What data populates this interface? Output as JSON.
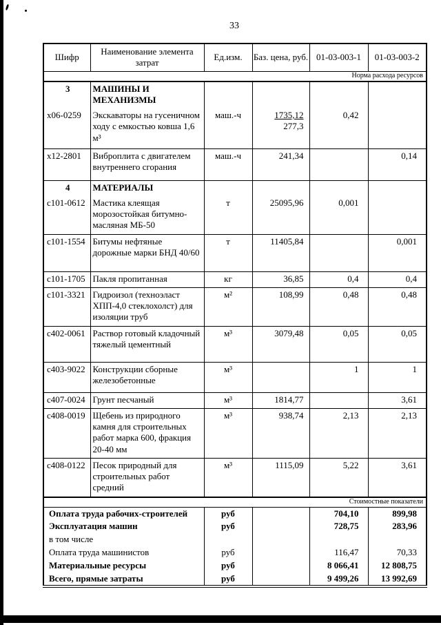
{
  "page": {
    "number": "33"
  },
  "table": {
    "headers": [
      "Шифр",
      "Наименование элемента затрат",
      "Ед.изм.",
      "Баз. цена, руб.",
      "01-03-003-1",
      "01-03-003-2"
    ],
    "notes": {
      "resources": "Норма расхода ресурсов",
      "costs": "Стоимостные показатели"
    },
    "rows": [
      {
        "code": "3",
        "name": "МАШИНЫ И МЕХАНИЗМЫ",
        "section": true
      },
      {
        "code": "х06-0259",
        "name": "Экскаваторы на гусеничном ходу с емкостью ковша 1,6 м³",
        "unit": "маш.-ч",
        "price": "1735,12",
        "price2": "277,3",
        "v1": "0,42",
        "v2": ""
      },
      {
        "code": "х12-2801",
        "name": "Виброплита с двигателем внутреннего сгорания",
        "unit": "маш.-ч",
        "price": "241,34",
        "v1": "",
        "v2": "0,14"
      },
      {
        "code": "4",
        "name": "МАТЕРИАЛЫ",
        "section": true
      },
      {
        "code": "с101-0612",
        "name": "Мастика клеящая морозостойкая битумно-масляная МБ-50",
        "unit": "т",
        "price": "25095,96",
        "v1": "0,001",
        "v2": ""
      },
      {
        "code": "с101-1554",
        "name": "Битумы нефтяные дорожные марки БНД 40/60",
        "unit": "т",
        "price": "11405,84",
        "v1": "",
        "v2": "0,001"
      },
      {
        "code": "с101-1705",
        "name": "Пакля пропитанная",
        "unit": "кг",
        "price": "36,85",
        "v1": "0,4",
        "v2": "0,4"
      },
      {
        "code": "с101-3321",
        "name": "Гидроизол (техноэласт ХПП-4,0 стеклохолст) для изоляции труб",
        "unit": "м²",
        "price": "108,99",
        "v1": "0,48",
        "v2": "0,48"
      },
      {
        "code": "с402-0061",
        "name": "Раствор готовый кладочный тяжелый цементный",
        "unit": "м³",
        "price": "3079,48",
        "v1": "0,05",
        "v2": "0,05"
      },
      {
        "code": "с403-9022",
        "name": "Конструкции сборные железобетонные",
        "unit": "м³",
        "price": "",
        "v1": "1",
        "v2": "1"
      },
      {
        "code": "с407-0024",
        "name": "Грунт песчаный",
        "unit": "м³",
        "price": "1814,77",
        "v1": "",
        "v2": "3,61"
      },
      {
        "code": "с408-0019",
        "name": "Щебень из природного камня для строительных работ марка 600, фракция 20-40 мм",
        "unit": "м³",
        "price": "938,74",
        "v1": "2,13",
        "v2": "2,13"
      },
      {
        "code": "с408-0122",
        "name": "Песок природный для строительных работ средний",
        "unit": "м³",
        "price": "1115,09",
        "v1": "5,22",
        "v2": "3,61"
      }
    ],
    "summary": [
      {
        "label": "Оплата труда рабочих-строителей",
        "unit": "руб",
        "v1": "704,10",
        "v2": "899,98",
        "bold": true
      },
      {
        "label": "Эксплуатация машин",
        "unit": "руб",
        "v1": "728,75",
        "v2": "283,96",
        "bold": true
      },
      {
        "label": "в том числе",
        "unit": "",
        "v1": "",
        "v2": "",
        "bold": false
      },
      {
        "label": "Оплата труда машинистов",
        "unit": "руб",
        "v1": "116,47",
        "v2": "70,33",
        "bold": false
      },
      {
        "label": "Материальные ресурсы",
        "unit": "руб",
        "v1": "8 066,41",
        "v2": "12 808,75",
        "bold": true
      },
      {
        "label": "Всего, прямые затраты",
        "unit": "руб",
        "v1": "9 499,26",
        "v2": "13 992,69",
        "bold": true
      }
    ]
  }
}
